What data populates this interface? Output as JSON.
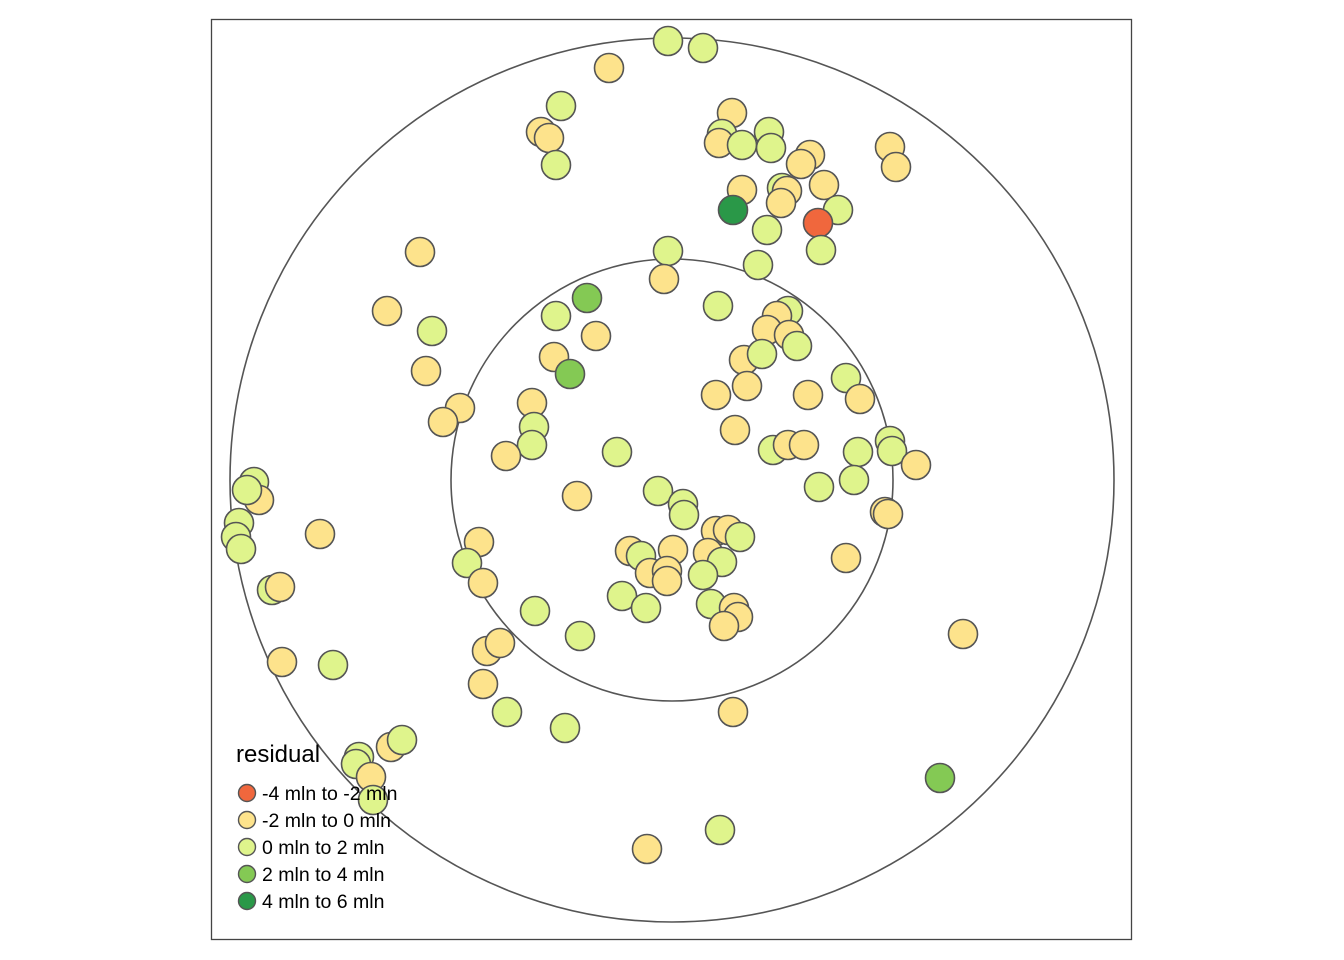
{
  "map": {
    "frame_color": "#444444",
    "ring_color": "#555555",
    "point_stroke": "#555555"
  },
  "legend": {
    "title": "residual",
    "classes": [
      {
        "label": "-4 mln to -2 mln",
        "color": "#f0673d"
      },
      {
        "label": "-2 mln to 0 mln",
        "color": "#fde38c"
      },
      {
        "label": "0 mln to 2 mln",
        "color": "#dff48c"
      },
      {
        "label": "2 mln to 4 mln",
        "color": "#84c954"
      },
      {
        "label": "4 mln to 6 mln",
        "color": "#2a9848"
      }
    ]
  }
}
